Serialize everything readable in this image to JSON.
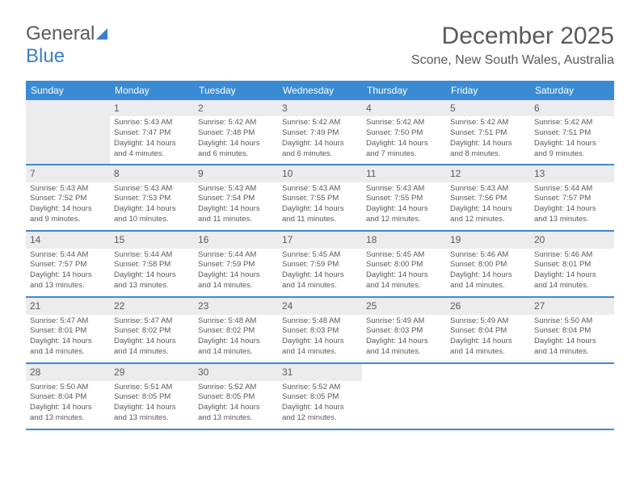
{
  "logo": {
    "part1": "General",
    "part2": "Blue"
  },
  "header": {
    "month_title": "December 2025",
    "location": "Scone, New South Wales, Australia"
  },
  "colors": {
    "header_bg": "#3b8bd4",
    "header_text": "#ffffff",
    "row_border": "#3b8bd4",
    "daybar_bg": "#ececec",
    "text": "#5a5a5a",
    "page_bg": "#ffffff",
    "logo_gray": "#5a5a5a",
    "logo_blue": "#3b7fc4"
  },
  "typography": {
    "title_fontsize": 30,
    "location_fontsize": 16,
    "dayheader_fontsize": 12,
    "daynum_fontsize": 12,
    "body_fontsize": 9.5
  },
  "day_names": [
    "Sunday",
    "Monday",
    "Tuesday",
    "Wednesday",
    "Thursday",
    "Friday",
    "Saturday"
  ],
  "first_weekday_index": 1,
  "days": [
    {
      "n": "1",
      "sunrise": "Sunrise: 5:43 AM",
      "sunset": "Sunset: 7:47 PM",
      "d1": "Daylight: 14 hours",
      "d2": "and 4 minutes."
    },
    {
      "n": "2",
      "sunrise": "Sunrise: 5:42 AM",
      "sunset": "Sunset: 7:48 PM",
      "d1": "Daylight: 14 hours",
      "d2": "and 6 minutes."
    },
    {
      "n": "3",
      "sunrise": "Sunrise: 5:42 AM",
      "sunset": "Sunset: 7:49 PM",
      "d1": "Daylight: 14 hours",
      "d2": "and 6 minutes."
    },
    {
      "n": "4",
      "sunrise": "Sunrise: 5:42 AM",
      "sunset": "Sunset: 7:50 PM",
      "d1": "Daylight: 14 hours",
      "d2": "and 7 minutes."
    },
    {
      "n": "5",
      "sunrise": "Sunrise: 5:42 AM",
      "sunset": "Sunset: 7:51 PM",
      "d1": "Daylight: 14 hours",
      "d2": "and 8 minutes."
    },
    {
      "n": "6",
      "sunrise": "Sunrise: 5:42 AM",
      "sunset": "Sunset: 7:51 PM",
      "d1": "Daylight: 14 hours",
      "d2": "and 9 minutes."
    },
    {
      "n": "7",
      "sunrise": "Sunrise: 5:43 AM",
      "sunset": "Sunset: 7:52 PM",
      "d1": "Daylight: 14 hours",
      "d2": "and 9 minutes."
    },
    {
      "n": "8",
      "sunrise": "Sunrise: 5:43 AM",
      "sunset": "Sunset: 7:53 PM",
      "d1": "Daylight: 14 hours",
      "d2": "and 10 minutes."
    },
    {
      "n": "9",
      "sunrise": "Sunrise: 5:43 AM",
      "sunset": "Sunset: 7:54 PM",
      "d1": "Daylight: 14 hours",
      "d2": "and 11 minutes."
    },
    {
      "n": "10",
      "sunrise": "Sunrise: 5:43 AM",
      "sunset": "Sunset: 7:55 PM",
      "d1": "Daylight: 14 hours",
      "d2": "and 11 minutes."
    },
    {
      "n": "11",
      "sunrise": "Sunrise: 5:43 AM",
      "sunset": "Sunset: 7:55 PM",
      "d1": "Daylight: 14 hours",
      "d2": "and 12 minutes."
    },
    {
      "n": "12",
      "sunrise": "Sunrise: 5:43 AM",
      "sunset": "Sunset: 7:56 PM",
      "d1": "Daylight: 14 hours",
      "d2": "and 12 minutes."
    },
    {
      "n": "13",
      "sunrise": "Sunrise: 5:44 AM",
      "sunset": "Sunset: 7:57 PM",
      "d1": "Daylight: 14 hours",
      "d2": "and 13 minutes."
    },
    {
      "n": "14",
      "sunrise": "Sunrise: 5:44 AM",
      "sunset": "Sunset: 7:57 PM",
      "d1": "Daylight: 14 hours",
      "d2": "and 13 minutes."
    },
    {
      "n": "15",
      "sunrise": "Sunrise: 5:44 AM",
      "sunset": "Sunset: 7:58 PM",
      "d1": "Daylight: 14 hours",
      "d2": "and 13 minutes."
    },
    {
      "n": "16",
      "sunrise": "Sunrise: 5:44 AM",
      "sunset": "Sunset: 7:59 PM",
      "d1": "Daylight: 14 hours",
      "d2": "and 14 minutes."
    },
    {
      "n": "17",
      "sunrise": "Sunrise: 5:45 AM",
      "sunset": "Sunset: 7:59 PM",
      "d1": "Daylight: 14 hours",
      "d2": "and 14 minutes."
    },
    {
      "n": "18",
      "sunrise": "Sunrise: 5:45 AM",
      "sunset": "Sunset: 8:00 PM",
      "d1": "Daylight: 14 hours",
      "d2": "and 14 minutes."
    },
    {
      "n": "19",
      "sunrise": "Sunrise: 5:46 AM",
      "sunset": "Sunset: 8:00 PM",
      "d1": "Daylight: 14 hours",
      "d2": "and 14 minutes."
    },
    {
      "n": "20",
      "sunrise": "Sunrise: 5:46 AM",
      "sunset": "Sunset: 8:01 PM",
      "d1": "Daylight: 14 hours",
      "d2": "and 14 minutes."
    },
    {
      "n": "21",
      "sunrise": "Sunrise: 5:47 AM",
      "sunset": "Sunset: 8:01 PM",
      "d1": "Daylight: 14 hours",
      "d2": "and 14 minutes."
    },
    {
      "n": "22",
      "sunrise": "Sunrise: 5:47 AM",
      "sunset": "Sunset: 8:02 PM",
      "d1": "Daylight: 14 hours",
      "d2": "and 14 minutes."
    },
    {
      "n": "23",
      "sunrise": "Sunrise: 5:48 AM",
      "sunset": "Sunset: 8:02 PM",
      "d1": "Daylight: 14 hours",
      "d2": "and 14 minutes."
    },
    {
      "n": "24",
      "sunrise": "Sunrise: 5:48 AM",
      "sunset": "Sunset: 8:03 PM",
      "d1": "Daylight: 14 hours",
      "d2": "and 14 minutes."
    },
    {
      "n": "25",
      "sunrise": "Sunrise: 5:49 AM",
      "sunset": "Sunset: 8:03 PM",
      "d1": "Daylight: 14 hours",
      "d2": "and 14 minutes."
    },
    {
      "n": "26",
      "sunrise": "Sunrise: 5:49 AM",
      "sunset": "Sunset: 8:04 PM",
      "d1": "Daylight: 14 hours",
      "d2": "and 14 minutes."
    },
    {
      "n": "27",
      "sunrise": "Sunrise: 5:50 AM",
      "sunset": "Sunset: 8:04 PM",
      "d1": "Daylight: 14 hours",
      "d2": "and 14 minutes."
    },
    {
      "n": "28",
      "sunrise": "Sunrise: 5:50 AM",
      "sunset": "Sunset: 8:04 PM",
      "d1": "Daylight: 14 hours",
      "d2": "and 13 minutes."
    },
    {
      "n": "29",
      "sunrise": "Sunrise: 5:51 AM",
      "sunset": "Sunset: 8:05 PM",
      "d1": "Daylight: 14 hours",
      "d2": "and 13 minutes."
    },
    {
      "n": "30",
      "sunrise": "Sunrise: 5:52 AM",
      "sunset": "Sunset: 8:05 PM",
      "d1": "Daylight: 14 hours",
      "d2": "and 13 minutes."
    },
    {
      "n": "31",
      "sunrise": "Sunrise: 5:52 AM",
      "sunset": "Sunset: 8:05 PM",
      "d1": "Daylight: 14 hours",
      "d2": "and 12 minutes."
    }
  ]
}
